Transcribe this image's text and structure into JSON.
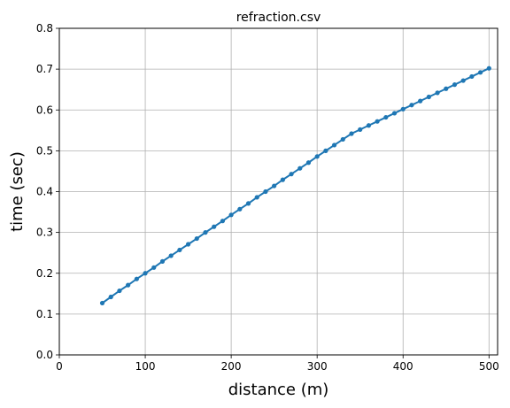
{
  "chart_data": {
    "type": "line",
    "title": "refraction.csv",
    "xlabel": "distance (m)",
    "ylabel": "time (sec)",
    "xlim": [
      0,
      510
    ],
    "ylim": [
      0.0,
      0.8
    ],
    "grid": true,
    "x_ticks": [
      0,
      100,
      200,
      300,
      400,
      500
    ],
    "y_ticks": [
      0.0,
      0.1,
      0.2,
      0.3,
      0.4,
      0.5,
      0.6,
      0.7,
      0.8
    ],
    "x_tick_labels": [
      "0",
      "100",
      "200",
      "300",
      "400",
      "500"
    ],
    "y_tick_labels": [
      "0.0",
      "0.1",
      "0.2",
      "0.3",
      "0.4",
      "0.5",
      "0.6",
      "0.7",
      "0.8"
    ],
    "series": [
      {
        "color": "#1f77b4",
        "marker": "circle",
        "x": [
          50,
          60,
          70,
          80,
          90,
          100,
          110,
          120,
          130,
          140,
          150,
          160,
          170,
          180,
          190,
          200,
          210,
          220,
          230,
          240,
          250,
          260,
          270,
          280,
          290,
          300,
          310,
          320,
          330,
          340,
          350,
          360,
          370,
          380,
          390,
          400,
          410,
          420,
          430,
          440,
          450,
          460,
          470,
          480,
          490,
          500
        ],
        "y": [
          0.127,
          0.142,
          0.157,
          0.171,
          0.186,
          0.2,
          0.214,
          0.229,
          0.243,
          0.257,
          0.271,
          0.285,
          0.3,
          0.314,
          0.328,
          0.343,
          0.357,
          0.371,
          0.386,
          0.4,
          0.414,
          0.429,
          0.443,
          0.457,
          0.471,
          0.486,
          0.5,
          0.514,
          0.528,
          0.542,
          0.552,
          0.562,
          0.572,
          0.582,
          0.592,
          0.602,
          0.612,
          0.622,
          0.632,
          0.642,
          0.652,
          0.662,
          0.672,
          0.682,
          0.692,
          0.702
        ]
      }
    ]
  }
}
